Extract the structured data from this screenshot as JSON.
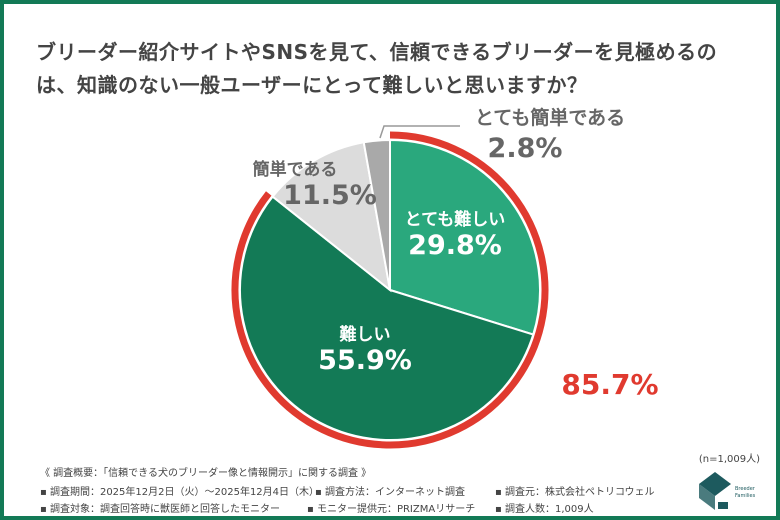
{
  "chart_data": {
    "type": "pie",
    "title": "ブリーダー紹介サイトやSNSを見て、信頼できるブリーダーを見極めるのは、知識のない一般ユーザーにとって難しいと思いますか？",
    "slices": [
      {
        "label": "とても難しい",
        "value": 29.8,
        "display": "29.8%",
        "color": "#2aa87d"
      },
      {
        "label": "難しい",
        "value": 55.9,
        "display": "55.9%",
        "color": "#137a56"
      },
      {
        "label": "簡単である",
        "value": 11.5,
        "display": "11.5%",
        "color": "#dcdcdc"
      },
      {
        "label": "とても簡単である",
        "value": 2.8,
        "display": "2.8%",
        "color": "#a9a9a9"
      }
    ],
    "highlight": {
      "value": "85.7%",
      "color": "#e03a2f"
    },
    "sample": "(n=1,009人)"
  },
  "footer": {
    "overview": "《 調査概要：「信頼できる犬のブリーダー像と情報開示」に関する調査 》",
    "period": "▪ 調査期間：2025年12月2日（火）～2025年12月4日（木）",
    "method": "▪ 調査方法：インターネット調査",
    "org": "▪ 調査元：株式会社ペトリコウェル",
    "target": "▪ 調査対象：調査回答時に獣医師と回答したモニター",
    "provider": "▪ モニター提供元：PRIZMAリサーチ",
    "count": "▪ 調査人数：1,009人"
  },
  "logo": {
    "text": "Breeder Families"
  }
}
